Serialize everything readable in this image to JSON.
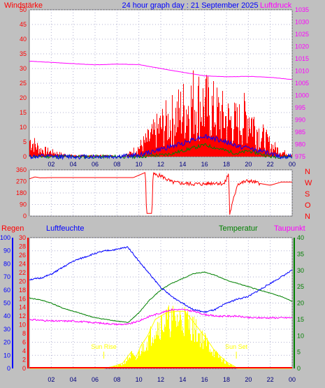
{
  "header": {
    "left_label": "Windstärke",
    "title": "24 hour graph day : 21 September 2025",
    "right_label": "Luftdruck"
  },
  "middle": {
    "direction_labels": [
      "N",
      "W",
      "S",
      "O",
      "N"
    ]
  },
  "bottom_header": {
    "regen": "Regen",
    "luftfeuchte": "Luftfeuchte",
    "temperatur": "Temperatur",
    "taupunkt": "Taupunkt"
  },
  "colors": {
    "wind": "#ff0000",
    "gust_blue": "#0000ff",
    "green": "#008000",
    "pressure": "#ff00ff",
    "humidity": "#0000ff",
    "temperature": "#008000",
    "dewpoint": "#ff00ff",
    "solar": "#ffff00",
    "background": "#ffffff",
    "frame": "#c0c0c0"
  },
  "chart_data": [
    {
      "type": "line",
      "title": "24 hour graph day : 21 September 2025",
      "x_ticks": [
        "02",
        "04",
        "06",
        "08",
        "10",
        "12",
        "14",
        "16",
        "18",
        "20",
        "22",
        "00"
      ],
      "y_left_label": "Windstärke",
      "y_left_ticks": [
        0,
        5,
        10,
        15,
        20,
        25,
        30,
        35,
        40,
        45,
        50
      ],
      "y_left_range": [
        0,
        50
      ],
      "y_right_label": "Luftdruck",
      "y_right_ticks": [
        975,
        980,
        985,
        990,
        995,
        1000,
        1005,
        1010,
        1015,
        1020,
        1025,
        1030,
        1035
      ],
      "y_right_range": [
        975,
        1035
      ],
      "series": [
        {
          "color": "#ff00ff",
          "axis": "right",
          "x": [
            0,
            2,
            4,
            6,
            8,
            10,
            12,
            14,
            16,
            18,
            20,
            22,
            24
          ],
          "values": [
            1014,
            1013.5,
            1013,
            1012.5,
            1012.8,
            1012.6,
            1011,
            1009.5,
            1008,
            1007.6,
            1007.8,
            1007.4,
            1006.5
          ]
        },
        {
          "color": "#ff0000",
          "axis": "left",
          "x": [
            0,
            1,
            2,
            3,
            4,
            5,
            6,
            7,
            8,
            9,
            10,
            11,
            12,
            13,
            14,
            15,
            16,
            17,
            18,
            19,
            20,
            21,
            22,
            23,
            24
          ],
          "values": [
            7,
            3,
            2,
            1,
            0.5,
            0.5,
            0.5,
            0.5,
            0.3,
            1,
            4,
            8,
            13,
            16,
            20,
            24,
            22,
            19,
            16,
            14,
            18,
            10,
            5,
            2,
            1
          ]
        },
        {
          "color": "#0000ff",
          "axis": "left",
          "x": [
            0,
            2,
            4,
            6,
            8,
            10,
            11,
            12,
            13,
            14,
            15,
            16,
            17,
            18,
            19,
            20,
            21,
            22,
            23,
            24
          ],
          "values": [
            0,
            0,
            0,
            0,
            0,
            0.5,
            1.5,
            2.5,
            3.5,
            4.5,
            6,
            7,
            6,
            5,
            3.5,
            3,
            2,
            1,
            0,
            0
          ]
        },
        {
          "color": "#008000",
          "axis": "left",
          "x": [
            0,
            10,
            12,
            13,
            14,
            15,
            16,
            17,
            18,
            19,
            20,
            21,
            22,
            24
          ],
          "values": [
            0,
            0,
            0.5,
            1,
            2,
            3,
            4,
            3,
            2,
            1,
            2,
            1,
            0,
            0
          ]
        }
      ]
    },
    {
      "type": "line",
      "title": "",
      "x_ticks": [
        "02",
        "04",
        "06",
        "08",
        "10",
        "12",
        "14",
        "16",
        "18",
        "20",
        "22",
        "00"
      ],
      "y_left_ticks": [
        0,
        90,
        180,
        270,
        360
      ],
      "y_left_range": [
        0,
        360
      ],
      "y_right_labels": [
        "N",
        "W",
        "S",
        "O",
        "N"
      ],
      "series": [
        {
          "color": "#ff0000",
          "x": [
            0,
            0.5,
            1,
            2,
            4,
            6,
            8,
            9.5,
            10.6,
            10.7,
            11.2,
            11.3,
            11.5,
            12,
            13,
            14,
            15,
            16,
            17,
            17.8,
            18.2,
            18.3,
            19,
            20,
            21,
            22,
            23,
            24
          ],
          "values": [
            290,
            305,
            298,
            300,
            300,
            300,
            300,
            300,
            340,
            20,
            20,
            340,
            320,
            315,
            265,
            255,
            250,
            250,
            260,
            250,
            330,
            15,
            250,
            275,
            255,
            240,
            265,
            265
          ]
        }
      ]
    },
    {
      "type": "line",
      "title": "",
      "x_ticks": [
        "02",
        "04",
        "06",
        "08",
        "10",
        "12",
        "14",
        "16",
        "18",
        "20",
        "22",
        "00"
      ],
      "y_humidity_ticks": [
        0,
        10,
        20,
        30,
        40,
        50,
        60,
        70,
        80,
        90,
        100
      ],
      "y_humidity_range": [
        0,
        100
      ],
      "y_rain_ticks": [
        0,
        2,
        4,
        6,
        8,
        10,
        12,
        14,
        16,
        18,
        20,
        22,
        24,
        26,
        28,
        30
      ],
      "y_temperature_ticks": [
        0,
        5,
        10,
        15,
        20,
        25,
        30,
        35,
        40
      ],
      "y_temperature_range": [
        0,
        40
      ],
      "annotations": [
        "Sun Rise",
        "Sun Set"
      ],
      "series": [
        {
          "color": "#0000ff",
          "axis": "humidity",
          "x": [
            0,
            1,
            2,
            3,
            4,
            5,
            6,
            7,
            8,
            9,
            10,
            11,
            12,
            13,
            14,
            15,
            16,
            17,
            18,
            19,
            20,
            21,
            22,
            23,
            24
          ],
          "values": [
            68,
            69,
            72,
            77,
            82,
            85,
            88,
            90,
            91,
            93,
            82,
            72,
            62,
            55,
            50,
            45,
            43,
            45,
            50,
            53,
            55,
            60,
            65,
            70,
            75
          ]
        },
        {
          "color": "#008000",
          "axis": "temperature",
          "x": [
            0,
            1,
            2,
            3,
            4,
            5,
            6,
            7,
            8,
            9,
            10,
            11,
            12,
            13,
            14,
            15,
            16,
            17,
            18,
            19,
            20,
            21,
            22,
            23,
            24
          ],
          "values": [
            21.5,
            21,
            20,
            18.5,
            17.5,
            16.5,
            15.5,
            15,
            14.5,
            14,
            17,
            21,
            24,
            26,
            27.5,
            29,
            29.5,
            28.5,
            27,
            26,
            25,
            24,
            23,
            22,
            20.5
          ]
        },
        {
          "color": "#ff00ff",
          "axis": "temperature",
          "x": [
            0,
            2,
            4,
            6,
            8,
            9,
            10,
            11,
            12,
            13,
            14,
            15,
            16,
            17,
            18,
            19,
            20,
            21,
            22,
            23,
            24
          ],
          "values": [
            15,
            14.5,
            14.5,
            14,
            13.5,
            13.5,
            14.5,
            16,
            17,
            18,
            18,
            17.5,
            16.5,
            16,
            16,
            16,
            15.5,
            15.5,
            15.5,
            15.5,
            15.5
          ]
        },
        {
          "color": "#ffff00",
          "axis": "temperature",
          "x": [
            0,
            6.8,
            7.5,
            8.5,
            9.3,
            9.7,
            10.2,
            10.8,
            11.5,
            12.5,
            13.5,
            14.2,
            14.8,
            15.5,
            16.2,
            17,
            18,
            18.8,
            19,
            24
          ],
          "values": [
            0,
            0,
            0.5,
            1.5,
            5,
            3,
            7,
            10,
            15,
            17,
            17.5,
            17.5,
            15,
            12,
            9,
            5,
            2,
            0.5,
            0,
            0
          ]
        },
        {
          "color": "#ff0000",
          "axis": "rain",
          "x": [
            0,
            24
          ],
          "values": [
            0,
            0
          ]
        }
      ]
    }
  ]
}
